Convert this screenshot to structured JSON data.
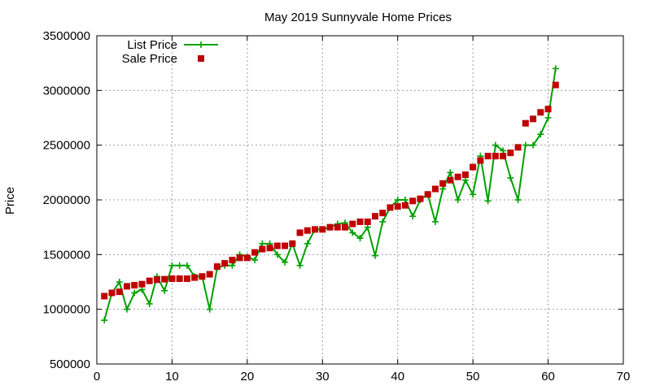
{
  "chart_data": {
    "type": "line",
    "title": "May 2019 Sunnyvale Home Prices",
    "xlabel": "",
    "ylabel": "Price",
    "xlim": [
      0,
      70
    ],
    "ylim": [
      500000,
      3500000
    ],
    "xticks": [
      "0",
      "10",
      "20",
      "30",
      "40",
      "50",
      "60",
      "70"
    ],
    "yticks": [
      "500000",
      "1000000",
      "1500000",
      "2000000",
      "2500000",
      "3000000",
      "3500000"
    ],
    "grid": true,
    "legend_position": "top-left",
    "series": [
      {
        "name": "List Price",
        "color": "#00a000",
        "marker": "plus",
        "style": "line+marker",
        "x": [
          1,
          2,
          3,
          4,
          5,
          6,
          7,
          8,
          9,
          10,
          11,
          12,
          13,
          14,
          15,
          16,
          17,
          18,
          19,
          20,
          21,
          22,
          23,
          24,
          25,
          26,
          27,
          28,
          29,
          30,
          31,
          32,
          33,
          34,
          35,
          36,
          37,
          38,
          39,
          40,
          41,
          42,
          43,
          44,
          45,
          46,
          47,
          48,
          49,
          50,
          51,
          52,
          53,
          54,
          55,
          56,
          57,
          58,
          59,
          60,
          61
        ],
        "y": [
          900000,
          1150000,
          1250000,
          1000000,
          1150000,
          1180000,
          1050000,
          1300000,
          1170000,
          1400000,
          1400000,
          1400000,
          1300000,
          1300000,
          1000000,
          1380000,
          1400000,
          1400000,
          1500000,
          1480000,
          1450000,
          1600000,
          1600000,
          1500000,
          1430000,
          1600000,
          1400000,
          1600000,
          1730000,
          1730000,
          1750000,
          1780000,
          1790000,
          1700000,
          1650000,
          1750000,
          1490000,
          1800000,
          1930000,
          2000000,
          2000000,
          1850000,
          2000000,
          2050000,
          1800000,
          2100000,
          2250000,
          2000000,
          2180000,
          2050000,
          2400000,
          1990000,
          2500000,
          2450000,
          2200000,
          2000000,
          2500000,
          2500000,
          2600000,
          2750000,
          3200000
        ]
      },
      {
        "name": "Sale Price",
        "color": "#c00000",
        "marker": "square",
        "style": "marker",
        "x": [
          1,
          2,
          3,
          4,
          5,
          6,
          7,
          8,
          9,
          10,
          11,
          12,
          13,
          14,
          15,
          16,
          17,
          18,
          19,
          20,
          21,
          22,
          23,
          24,
          25,
          26,
          27,
          28,
          29,
          30,
          31,
          32,
          33,
          34,
          35,
          36,
          37,
          38,
          39,
          40,
          41,
          42,
          43,
          44,
          45,
          46,
          47,
          48,
          49,
          50,
          51,
          52,
          53,
          54,
          55,
          56,
          57,
          58,
          59,
          60,
          61
        ],
        "y": [
          1120000,
          1150000,
          1160000,
          1210000,
          1220000,
          1230000,
          1260000,
          1270000,
          1275000,
          1280000,
          1280000,
          1280000,
          1290000,
          1300000,
          1320000,
          1390000,
          1420000,
          1450000,
          1470000,
          1470000,
          1520000,
          1550000,
          1560000,
          1580000,
          1580000,
          1600000,
          1700000,
          1720000,
          1730000,
          1730000,
          1750000,
          1750000,
          1750000,
          1780000,
          1800000,
          1800000,
          1850000,
          1880000,
          1930000,
          1940000,
          1950000,
          1990000,
          2010000,
          2050000,
          2100000,
          2150000,
          2180000,
          2210000,
          2230000,
          2300000,
          2360000,
          2400000,
          2400000,
          2400000,
          2430000,
          2480000,
          2700000,
          2740000,
          2800000,
          2830000,
          3050000
        ]
      }
    ]
  }
}
